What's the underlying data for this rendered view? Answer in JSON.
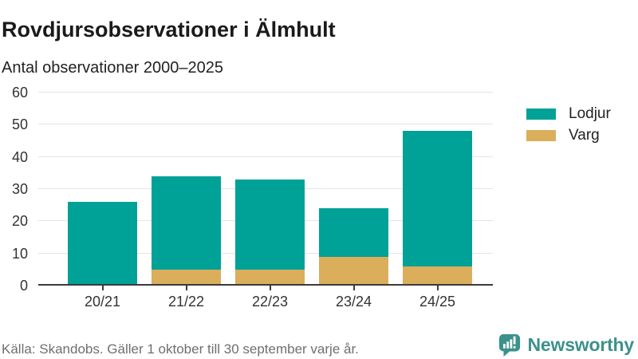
{
  "header": {
    "title": "Rovdjursobservationer i Älmhult",
    "subtitle": "Antal observationer 2000–2025"
  },
  "chart_data": {
    "type": "bar",
    "stacked": true,
    "title": "Rovdjursobservationer i Älmhult",
    "subtitle": "Antal observationer 2000–2025",
    "xlabel": "",
    "ylabel": "",
    "categories": [
      "20/21",
      "21/22",
      "22/23",
      "23/24",
      "24/25"
    ],
    "series": [
      {
        "name": "Lodjur",
        "color": "#00a196",
        "values": [
          26,
          29,
          28,
          15,
          42
        ]
      },
      {
        "name": "Varg",
        "color": "#dbae5c",
        "values": [
          0,
          5,
          5,
          9,
          6
        ]
      }
    ],
    "stack_order_bottom_to_top": [
      "Varg",
      "Lodjur"
    ],
    "totals": [
      26,
      34,
      33,
      24,
      48
    ],
    "ylim": [
      0,
      60
    ],
    "yticks": [
      0,
      10,
      20,
      30,
      40,
      50,
      60
    ],
    "grid": true,
    "legend_position": "right"
  },
  "legend": {
    "items": [
      {
        "label": "Lodjur",
        "color": "#00a196"
      },
      {
        "label": "Varg",
        "color": "#dbae5c"
      }
    ]
  },
  "footer": {
    "source": "Källa: Skandobs. Gäller 1 oktober till 30 september varje år.",
    "brand": "Newsworthy"
  },
  "colors": {
    "lodjur": "#00a196",
    "varg": "#dbae5c",
    "axis": "#3b3b3b",
    "gridline": "#e4e4e4",
    "text_dark": "#1a1a1a",
    "text_muted": "#6f6f6f",
    "brand_teal": "#3c918c"
  }
}
